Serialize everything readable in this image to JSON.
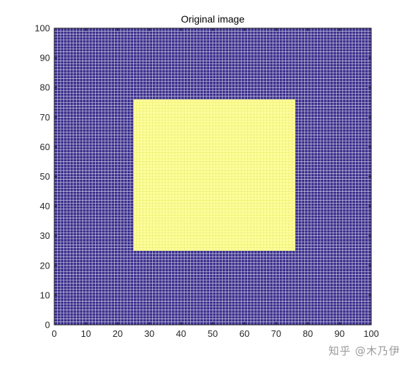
{
  "chart_data": {
    "type": "heatmap",
    "title": "Original image",
    "xlabel": "",
    "ylabel": "",
    "xlim": [
      0,
      100
    ],
    "ylim": [
      0,
      100
    ],
    "xticks": [
      "0",
      "10",
      "20",
      "30",
      "40",
      "50",
      "60",
      "70",
      "80",
      "90",
      "100"
    ],
    "yticks": [
      "0",
      "10",
      "20",
      "30",
      "40",
      "50",
      "60",
      "70",
      "80",
      "90",
      "100"
    ],
    "grid_size": 101,
    "background_value": 0,
    "region": {
      "value": 1,
      "x_range": [
        25,
        76
      ],
      "y_range": [
        25,
        76
      ]
    },
    "colors": {
      "low": "#3a2e8c",
      "high": "#ffff99",
      "high_edge": "#e8e85a",
      "axis": "#262626"
    },
    "grid": true
  },
  "watermark": "知乎 @木乃伊"
}
